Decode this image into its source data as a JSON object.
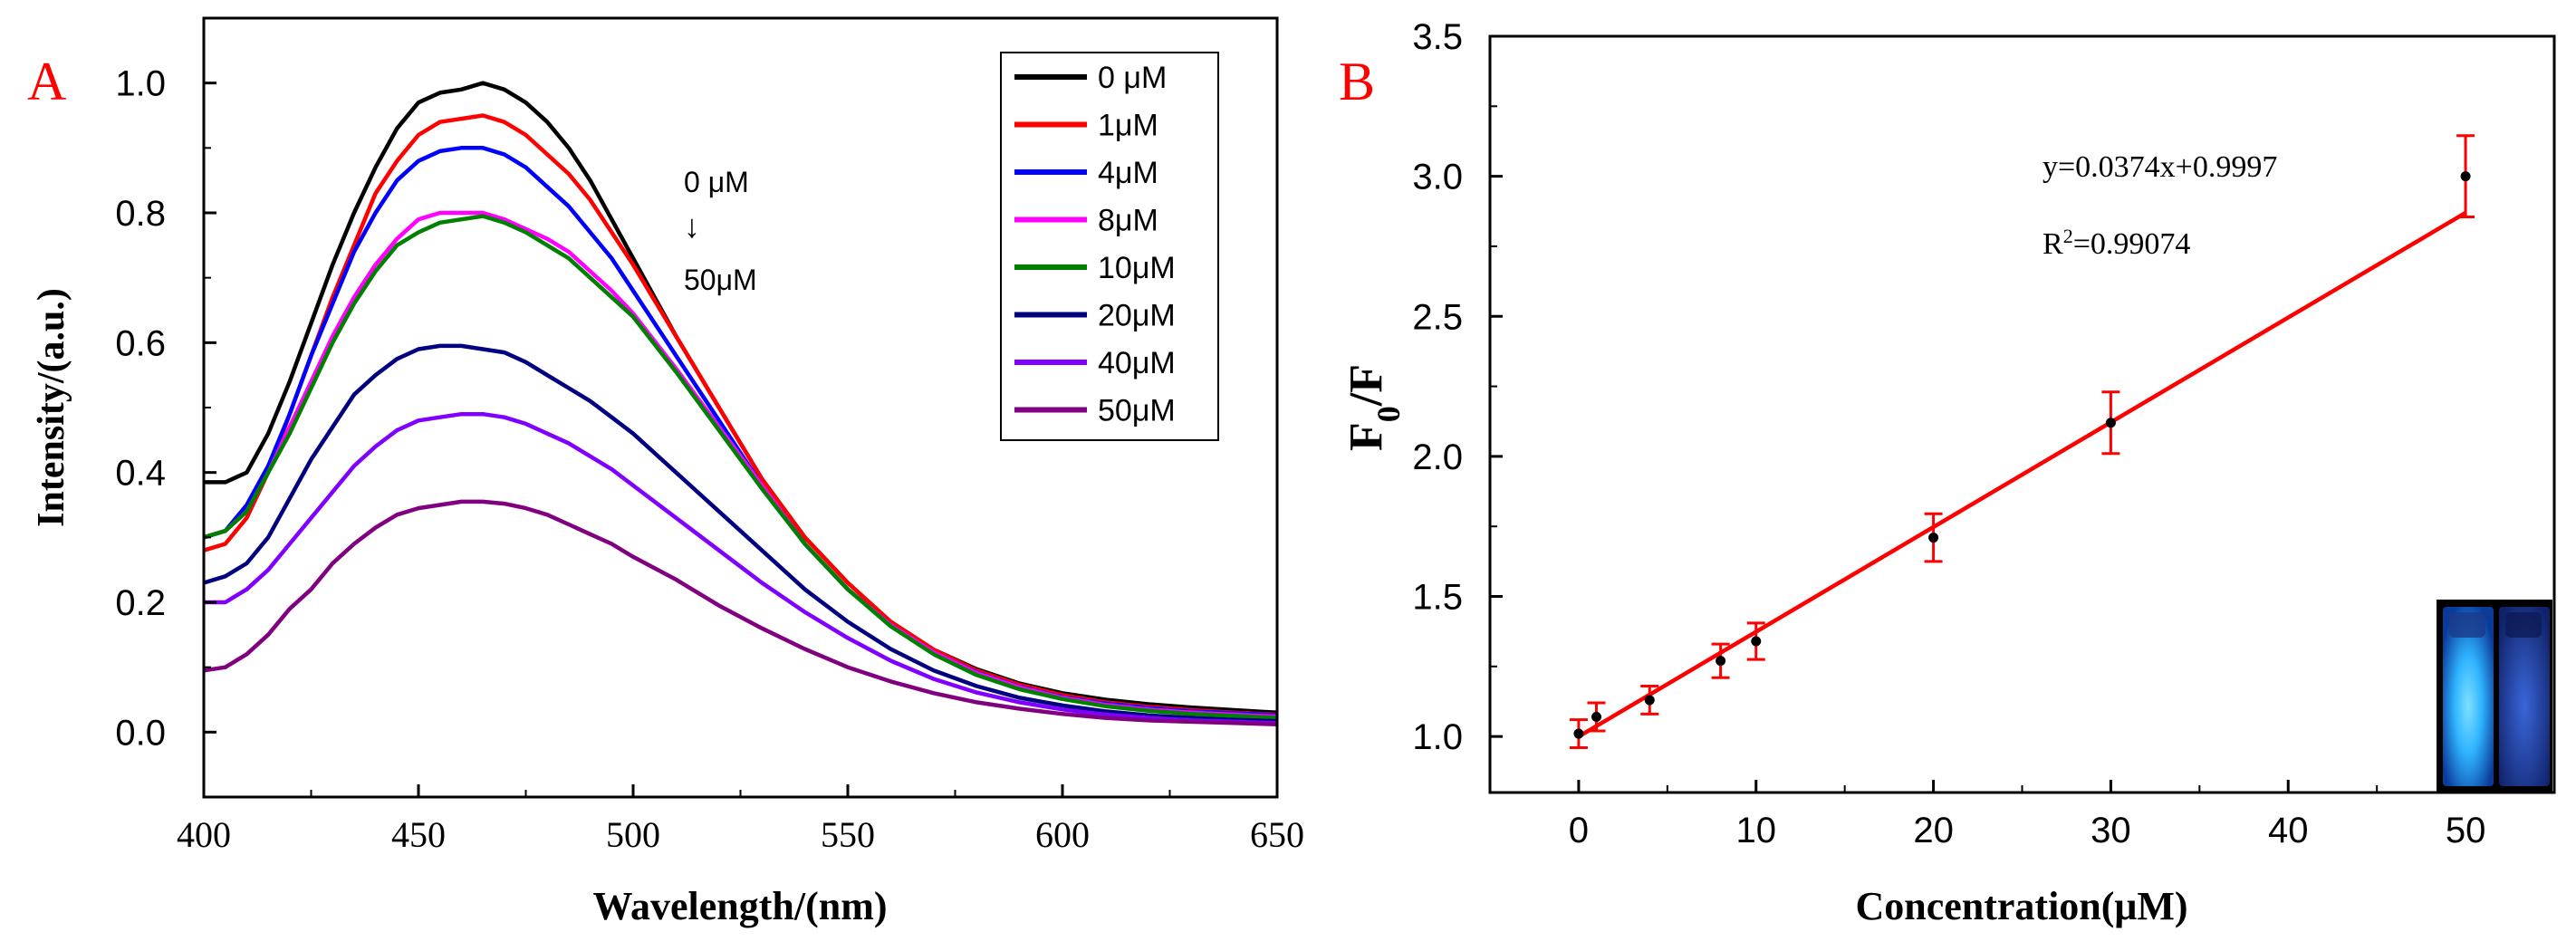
{
  "chart_data": [
    {
      "panel_label": "A",
      "type": "line",
      "title": "",
      "xlabel": "Wavelength/(nm)",
      "ylabel": "Intensity/(a.u.)",
      "xlim": [
        400,
        650
      ],
      "ylim": [
        -0.1,
        1.1
      ],
      "xticks": [
        400,
        450,
        500,
        550,
        600,
        650
      ],
      "xtick_labels": [
        "400",
        "450",
        "500",
        "550",
        "600",
        "650"
      ],
      "yticks": [
        0.0,
        0.2,
        0.4,
        0.6,
        0.8,
        1.0
      ],
      "ytick_labels": [
        "0.0",
        "0.2",
        "0.4",
        "0.6",
        "0.8",
        "1.0"
      ],
      "grid": false,
      "legend_position": "top-right",
      "annotation": {
        "top": "0 μM",
        "arrow": "↓",
        "bottom": "50μM"
      },
      "x": [
        400,
        405,
        410,
        415,
        420,
        425,
        430,
        435,
        440,
        445,
        450,
        455,
        460,
        465,
        470,
        475,
        480,
        485,
        490,
        495,
        500,
        510,
        520,
        530,
        540,
        550,
        560,
        570,
        580,
        590,
        600,
        610,
        620,
        630,
        640,
        650
      ],
      "series": [
        {
          "name": "0 μM",
          "color": "#000000",
          "values": [
            0.385,
            0.385,
            0.4,
            0.46,
            0.54,
            0.63,
            0.72,
            0.8,
            0.87,
            0.93,
            0.97,
            0.985,
            0.99,
            1.0,
            0.99,
            0.97,
            0.94,
            0.9,
            0.85,
            0.79,
            0.73,
            0.61,
            0.5,
            0.39,
            0.3,
            0.23,
            0.17,
            0.127,
            0.097,
            0.075,
            0.06,
            0.05,
            0.043,
            0.038,
            0.034,
            0.03
          ]
        },
        {
          "name": "1μM",
          "color": "#ff0000",
          "values": [
            0.28,
            0.29,
            0.33,
            0.4,
            0.49,
            0.58,
            0.67,
            0.75,
            0.83,
            0.88,
            0.92,
            0.94,
            0.945,
            0.95,
            0.94,
            0.92,
            0.89,
            0.86,
            0.82,
            0.77,
            0.72,
            0.61,
            0.5,
            0.39,
            0.3,
            0.23,
            0.17,
            0.127,
            0.095,
            0.073,
            0.057,
            0.046,
            0.039,
            0.034,
            0.03,
            0.027
          ]
        },
        {
          "name": "4μM",
          "color": "#0000ff",
          "values": [
            0.3,
            0.31,
            0.35,
            0.41,
            0.49,
            0.58,
            0.66,
            0.74,
            0.8,
            0.85,
            0.88,
            0.895,
            0.9,
            0.9,
            0.89,
            0.87,
            0.84,
            0.81,
            0.77,
            0.73,
            0.68,
            0.58,
            0.48,
            0.38,
            0.29,
            0.22,
            0.165,
            0.123,
            0.092,
            0.07,
            0.054,
            0.044,
            0.037,
            0.032,
            0.029,
            0.026
          ]
        },
        {
          "name": "8μM",
          "color": "#ff00ff",
          "values": [
            0.3,
            0.31,
            0.34,
            0.4,
            0.47,
            0.54,
            0.61,
            0.67,
            0.72,
            0.76,
            0.79,
            0.8,
            0.8,
            0.8,
            0.79,
            0.775,
            0.76,
            0.74,
            0.71,
            0.68,
            0.645,
            0.56,
            0.47,
            0.38,
            0.29,
            0.22,
            0.165,
            0.123,
            0.091,
            0.069,
            0.053,
            0.042,
            0.035,
            0.03,
            0.027,
            0.024
          ]
        },
        {
          "name": "10μM",
          "color": "#008000",
          "values": [
            0.3,
            0.31,
            0.34,
            0.4,
            0.46,
            0.53,
            0.6,
            0.66,
            0.71,
            0.75,
            0.77,
            0.785,
            0.79,
            0.795,
            0.785,
            0.77,
            0.75,
            0.73,
            0.7,
            0.67,
            0.64,
            0.555,
            0.465,
            0.375,
            0.29,
            0.22,
            0.163,
            0.12,
            0.088,
            0.066,
            0.051,
            0.04,
            0.033,
            0.028,
            0.025,
            0.022
          ]
        },
        {
          "name": "20μM",
          "color": "#000080",
          "values": [
            0.23,
            0.24,
            0.26,
            0.3,
            0.36,
            0.42,
            0.47,
            0.52,
            0.55,
            0.575,
            0.59,
            0.595,
            0.595,
            0.59,
            0.585,
            0.57,
            0.55,
            0.53,
            0.51,
            0.485,
            0.46,
            0.4,
            0.34,
            0.28,
            0.22,
            0.17,
            0.128,
            0.095,
            0.071,
            0.053,
            0.041,
            0.032,
            0.026,
            0.022,
            0.019,
            0.017
          ]
        },
        {
          "name": "40μM",
          "color": "#8000ff",
          "values": [
            0.2,
            0.2,
            0.22,
            0.25,
            0.29,
            0.33,
            0.37,
            0.41,
            0.44,
            0.465,
            0.48,
            0.485,
            0.49,
            0.49,
            0.485,
            0.475,
            0.46,
            0.445,
            0.425,
            0.405,
            0.38,
            0.33,
            0.28,
            0.23,
            0.185,
            0.145,
            0.11,
            0.082,
            0.061,
            0.046,
            0.035,
            0.027,
            0.022,
            0.018,
            0.016,
            0.014
          ]
        },
        {
          "name": "50μM",
          "color": "#800080",
          "values": [
            0.095,
            0.1,
            0.12,
            0.15,
            0.19,
            0.22,
            0.26,
            0.29,
            0.315,
            0.335,
            0.345,
            0.35,
            0.355,
            0.355,
            0.352,
            0.345,
            0.335,
            0.32,
            0.305,
            0.29,
            0.27,
            0.235,
            0.195,
            0.16,
            0.128,
            0.1,
            0.078,
            0.06,
            0.046,
            0.036,
            0.028,
            0.022,
            0.018,
            0.016,
            0.014,
            0.012
          ]
        }
      ]
    },
    {
      "panel_label": "B",
      "type": "scatter",
      "title": "",
      "xlabel": "Concentration(μM)",
      "ylabel_main": "F",
      "ylabel_sub": "0",
      "ylabel_tail": "/F",
      "xlim": [
        -5,
        55
      ],
      "ylim": [
        0.8,
        3.5
      ],
      "xticks": [
        0,
        10,
        20,
        30,
        40,
        50
      ],
      "xtick_labels": [
        "0",
        "10",
        "20",
        "30",
        "40",
        "50"
      ],
      "yticks": [
        1.0,
        1.5,
        2.0,
        2.5,
        3.0,
        3.5
      ],
      "ytick_labels": [
        "1.0",
        "1.5",
        "2.0",
        "2.5",
        "3.0",
        "3.5"
      ],
      "grid": false,
      "x": [
        0,
        1,
        4,
        8,
        10,
        20,
        30,
        50
      ],
      "y": [
        1.01,
        1.07,
        1.13,
        1.27,
        1.34,
        1.71,
        2.12,
        3.0
      ],
      "error": [
        0.05,
        0.05,
        0.05,
        0.06,
        0.065,
        0.085,
        0.11,
        0.145
      ],
      "point_color": "#000000",
      "error_color": "#ff0000",
      "fit": {
        "slope": 0.0374,
        "intercept": 0.9997,
        "color": "#ff0000",
        "x_range": [
          0,
          50
        ]
      },
      "equation_text": "y=0.0374x+0.9997",
      "r2_text": {
        "prefix": "R",
        "sup": "2",
        "value": "=0.99074"
      },
      "inset": "photo of two cuvettes under UV light"
    }
  ]
}
